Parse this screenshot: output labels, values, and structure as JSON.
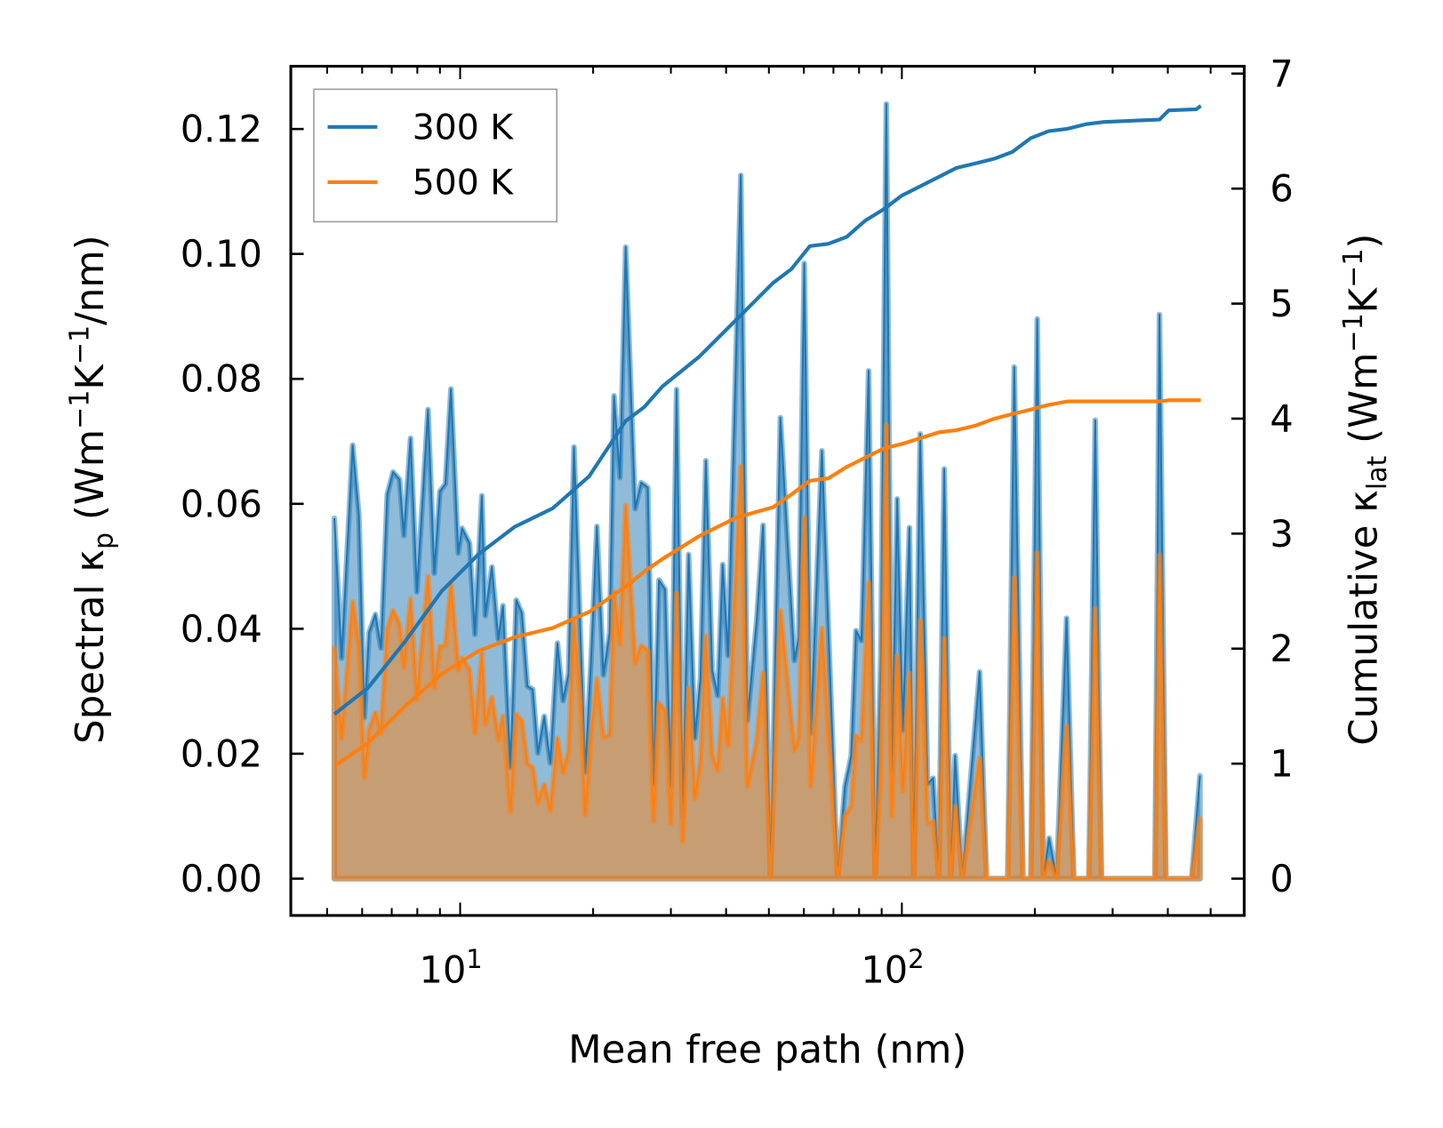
{
  "chart_data": {
    "type": "area",
    "xscale": "log",
    "xlabel": "Mean free path (nm)",
    "xlim": [
      4.3,
      520
    ],
    "x_ticks": [
      {
        "base": "10",
        "exp": "1",
        "value": 10
      },
      {
        "base": "10",
        "exp": "2",
        "value": 100
      }
    ],
    "ylabel_left_parts": [
      {
        "t": "Spectral κ"
      },
      {
        "t": "p",
        "pos": "sub"
      },
      {
        "t": " (Wm"
      },
      {
        "t": "−1",
        "pos": "sup"
      },
      {
        "t": "K"
      },
      {
        "t": "−1",
        "pos": "sup"
      },
      {
        "t": "/nm)"
      }
    ],
    "ylabel_right_parts": [
      {
        "t": "Cumulative κ"
      },
      {
        "t": "lat",
        "pos": "sub"
      },
      {
        "t": " (Wm"
      },
      {
        "t": "−1",
        "pos": "sup"
      },
      {
        "t": "K"
      },
      {
        "t": "−1",
        "pos": "sup"
      },
      {
        "t": ")"
      }
    ],
    "ylim_left": [
      -0.006,
      0.1296
    ],
    "ylim_right": [
      -0.33,
      7.06
    ],
    "yticks_left": [
      "0.00",
      "0.02",
      "0.04",
      "0.06",
      "0.08",
      "0.10",
      "0.12"
    ],
    "yticks_right": [
      "0",
      "1",
      "2",
      "3",
      "4",
      "5",
      "6",
      "7"
    ],
    "legend": {
      "placement": "top-left",
      "entries": [
        "300 K",
        "500 K"
      ]
    },
    "colors": {
      "300 K": "#1f77b4",
      "500 K": "#ff7f0e"
    },
    "spectral": {
      "x": [
        5.19,
        5.39,
        5.71,
        5.9,
        6.07,
        6.22,
        6.43,
        6.62,
        6.84,
        7.05,
        7.29,
        7.46,
        7.72,
        7.98,
        8.46,
        8.74,
        9.0,
        9.26,
        9.53,
        9.9,
        10.1,
        10.5,
        10.8,
        11.2,
        11.4,
        11.8,
        12.2,
        12.5,
        13.0,
        13.4,
        13.8,
        14.2,
        14.6,
        15.0,
        15.5,
        16.0,
        16.6,
        17.1,
        17.6,
        18.1,
        18.7,
        19.2,
        19.8,
        20.4,
        21.1,
        21.8,
        22.3,
        23.0,
        23.7,
        24.9,
        25.7,
        26.6,
        27.4,
        28.2,
        29.1,
        30.0,
        30.9,
        31.9,
        32.9,
        34.0,
        35.0,
        36.0,
        37.2,
        38.3,
        39.3,
        40.4,
        43.2,
        44.7,
        46.9,
        48.5,
        50.4,
        53.1,
        57.1,
        58.4,
        60.1,
        62.2,
        65.9,
        71.5,
        74.3,
        76.8,
        78.7,
        81.0,
        84.1,
        87.0,
        89.6,
        92.2,
        94.9,
        97.6,
        100.5,
        104,
        106.4,
        110,
        114.4,
        117.7,
        121.2,
        124.7,
        129,
        132,
        137,
        150,
        155.5,
        173.6,
        179.6,
        188,
        195.8,
        202.5,
        209,
        215.4,
        224,
        236,
        245,
        265,
        274,
        283,
        374,
        383,
        396,
        453,
        473
      ],
      "series": [
        {
          "name": "300 K",
          "values": [
            0.0577,
            0.0353,
            0.0694,
            0.0582,
            0.0258,
            0.0394,
            0.0423,
            0.0369,
            0.0615,
            0.0651,
            0.0639,
            0.0549,
            0.0705,
            0.0459,
            0.0751,
            0.0489,
            0.062,
            0.0632,
            0.0784,
            0.0521,
            0.0561,
            0.0537,
            0.0391,
            0.0613,
            0.0421,
            0.0499,
            0.0383,
            0.0437,
            0.0178,
            0.0446,
            0.0425,
            0.0308,
            0.0303,
            0.0201,
            0.026,
            0.0185,
            0.0377,
            0.0285,
            0.0328,
            0.0691,
            0.04,
            0.017,
            0.0356,
            0.0564,
            0.0326,
            0.0394,
            0.0773,
            0.0642,
            0.1011,
            0.0592,
            0.0634,
            0.0626,
            0.0152,
            0.0478,
            0.0463,
            0.0148,
            0.0783,
            0.01,
            0.0519,
            0.0225,
            0.0321,
            0.0669,
            0.0333,
            0.0293,
            0.0503,
            0.0357,
            0.1126,
            0.0253,
            0.0413,
            0.0566,
            0,
            0.0738,
            0.0349,
            0.0385,
            0.0985,
            0.0233,
            0.0685,
            0,
            0.0148,
            0.0197,
            0.0397,
            0.0381,
            0.0813,
            0,
            0.0357,
            0.124,
            0.0173,
            0.0608,
            0.0237,
            0.0562,
            0,
            0.0712,
            0.0152,
            0.0161,
            0,
            0.0656,
            0,
            0.0197,
            0,
            0.0331,
            0,
            0,
            0.0819,
            0,
            0,
            0.0896,
            0,
            0.0065,
            0,
            0.0417,
            0,
            0,
            0.0734,
            0,
            0,
            0.0903,
            0,
            0,
            0.0165
          ]
        },
        {
          "name": "500 K",
          "values": [
            0.0369,
            0.0225,
            0.0443,
            0.0372,
            0.0162,
            0.0238,
            0.0266,
            0.0233,
            0.0399,
            0.0429,
            0.0407,
            0.0339,
            0.0448,
            0.0287,
            0.0484,
            0.0306,
            0.0372,
            0.0373,
            0.0473,
            0.0334,
            0.0353,
            0.0334,
            0.0233,
            0.0361,
            0.0247,
            0.029,
            0.0222,
            0.026,
            0.0107,
            0.0263,
            0.0252,
            0.0184,
            0.0178,
            0.0121,
            0.0151,
            0.011,
            0.0225,
            0.017,
            0.0203,
            0.0413,
            0.0285,
            0.0102,
            0.023,
            0.032,
            0.0227,
            0.023,
            0.0459,
            0.0375,
            0.0598,
            0.0345,
            0.0373,
            0.0365,
            0.0092,
            0.0281,
            0.0269,
            0.0088,
            0.0457,
            0.006,
            0.0305,
            0.0128,
            0.019,
            0.0389,
            0.0197,
            0.0173,
            0.0289,
            0.0213,
            0.066,
            0.0148,
            0.0221,
            0.0329,
            0,
            0.0429,
            0.0205,
            0.0225,
            0.0578,
            0.0148,
            0.0401,
            0,
            0.01,
            0.0116,
            0.0229,
            0.0221,
            0.0474,
            0,
            0.0173,
            0.0726,
            0.01,
            0.0357,
            0.014,
            0.0329,
            0,
            0.0413,
            0.0088,
            0.0092,
            0,
            0.0385,
            0,
            0.0116,
            0,
            0.0193,
            0,
            0,
            0.0482,
            0,
            0,
            0.0522,
            0,
            0.0028,
            0,
            0.0245,
            0,
            0,
            0.0433,
            0,
            0,
            0.0518,
            0,
            0,
            0.0096
          ]
        }
      ]
    },
    "cumulative": {
      "x": [
        5.19,
        6.19,
        7.5,
        9.08,
        11.0,
        13.3,
        16.2,
        19.6,
        23.7,
        26.1,
        28.7,
        34.8,
        42.2,
        51.1,
        56.2,
        61.9,
        68.1,
        75.0,
        82.5,
        90.9,
        100,
        110,
        121,
        133,
        147,
        162,
        178,
        196,
        215,
        237,
        261,
        287,
        383,
        402,
        464,
        475
      ],
      "series": [
        {
          "name": "300 K",
          "values": [
            1.43,
            1.66,
            2.06,
            2.5,
            2.82,
            3.06,
            3.22,
            3.5,
            3.98,
            4.1,
            4.28,
            4.54,
            4.86,
            5.18,
            5.3,
            5.5,
            5.52,
            5.58,
            5.72,
            5.82,
            5.94,
            6.02,
            6.1,
            6.18,
            6.22,
            6.26,
            6.32,
            6.44,
            6.5,
            6.52,
            6.56,
            6.58,
            6.6,
            6.68,
            6.69,
            6.72
          ]
        },
        {
          "name": "500 K",
          "values": [
            0.98,
            1.18,
            1.5,
            1.78,
            1.98,
            2.1,
            2.18,
            2.32,
            2.54,
            2.67,
            2.78,
            2.98,
            3.14,
            3.23,
            3.34,
            3.46,
            3.48,
            3.58,
            3.66,
            3.74,
            3.78,
            3.83,
            3.88,
            3.9,
            3.94,
            4.0,
            4.04,
            4.08,
            4.12,
            4.15,
            4.15,
            4.15,
            4.15,
            4.16,
            4.16,
            4.16
          ]
        }
      ]
    }
  }
}
